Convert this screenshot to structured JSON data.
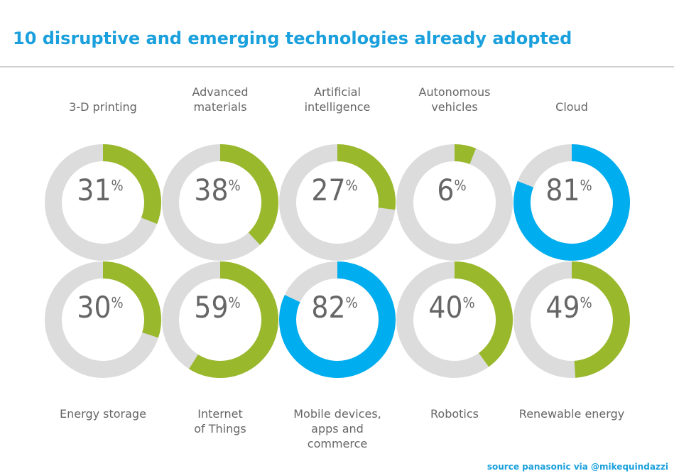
{
  "chart_data": {
    "type": "donut",
    "title": "10 disruptive and emerging technologies already adopted",
    "source": "source panasonic via @mikequindazzi",
    "unit": "%",
    "categories": [
      "3-D printing",
      "Advanced\nmaterials",
      "Artificial\nintelligence",
      "Autonomous\nvehicles",
      "Cloud",
      "Energy storage",
      "Internet\nof Things",
      "Mobile devices,\napps and\ncommerce",
      "Robotics",
      "Renewable energy"
    ],
    "values": [
      31,
      38,
      27,
      6,
      81,
      30,
      59,
      82,
      40,
      49
    ],
    "colors": [
      "#9ab82c",
      "#9ab82c",
      "#9ab82c",
      "#9ab82c",
      "#00aeef",
      "#9ab82c",
      "#9ab82c",
      "#00aeef",
      "#9ab82c",
      "#9ab82c"
    ],
    "track_color": "#dcdcdc"
  }
}
